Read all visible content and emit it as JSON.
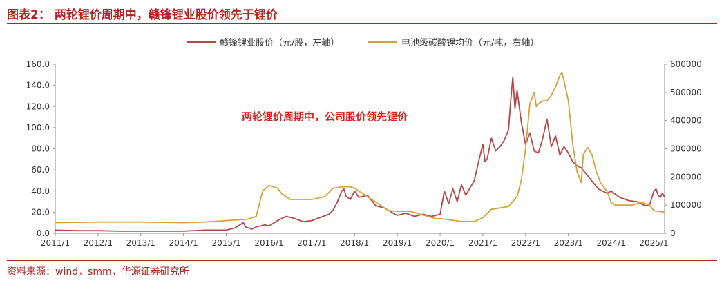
{
  "figure_title": "图表2：    两轮锂价周期中，赣锋锂业股价领先于锂价",
  "source": "资料来源：wind，smm，华源证券研究所",
  "chart_data": {
    "type": "line",
    "annotation": "两轮锂价周期中，公司股价领先锂价",
    "x_tick_labels": [
      "2011/1",
      "2012/1",
      "2013/1",
      "2014/1",
      "2015/1",
      "2016/1",
      "2017/1",
      "2018/1",
      "2019/1",
      "2020/1",
      "2021/1",
      "2022/1",
      "2023/1",
      "2024/1",
      "2025/1"
    ],
    "x_range": [
      2011.0,
      2025.25
    ],
    "y_left": {
      "range": [
        0,
        160
      ],
      "ticks": [
        "0.0",
        "20.0",
        "40.0",
        "60.0",
        "80.0",
        "100.0",
        "120.0",
        "140.0",
        "160.0"
      ]
    },
    "y_right": {
      "range": [
        0,
        600000
      ],
      "ticks": [
        "0",
        "100000",
        "200000",
        "300000",
        "400000",
        "500000",
        "600000"
      ]
    },
    "grid": false,
    "legend_position": "top",
    "colors": {
      "stock": "#b5484a",
      "lithium": "#d4a33a",
      "title": "#b22222",
      "annotation": "#e02020"
    },
    "series": [
      {
        "name": "赣锋锂业股价（元/股，左轴）",
        "axis": "left",
        "color": "#b5484a",
        "x": [
          2011.0,
          2011.5,
          2012.0,
          2012.5,
          2013.0,
          2013.5,
          2014.0,
          2014.5,
          2015.0,
          2015.2,
          2015.4,
          2015.45,
          2015.6,
          2015.7,
          2015.9,
          2016.0,
          2016.2,
          2016.4,
          2016.6,
          2016.8,
          2017.0,
          2017.2,
          2017.4,
          2017.5,
          2017.6,
          2017.7,
          2017.75,
          2017.8,
          2017.9,
          2018.0,
          2018.1,
          2018.3,
          2018.5,
          2018.7,
          2018.9,
          2019.0,
          2019.2,
          2019.4,
          2019.6,
          2019.8,
          2020.0,
          2020.1,
          2020.2,
          2020.3,
          2020.4,
          2020.5,
          2020.6,
          2020.8,
          2020.9,
          2021.0,
          2021.05,
          2021.1,
          2021.2,
          2021.3,
          2021.4,
          2021.5,
          2021.6,
          2021.65,
          2021.7,
          2021.75,
          2021.8,
          2021.85,
          2021.9,
          2022.0,
          2022.1,
          2022.2,
          2022.3,
          2022.4,
          2022.5,
          2022.55,
          2022.6,
          2022.7,
          2022.8,
          2022.9,
          2023.0,
          2023.1,
          2023.2,
          2023.3,
          2023.5,
          2023.7,
          2023.9,
          2024.0,
          2024.2,
          2024.4,
          2024.6,
          2024.8,
          2024.9,
          2025.0,
          2025.05,
          2025.1,
          2025.15,
          2025.2,
          2025.25
        ],
        "values": [
          3,
          2.5,
          2.5,
          2,
          2,
          2,
          2,
          3,
          3,
          5,
          10,
          6,
          4,
          6,
          8,
          7,
          12,
          16,
          14,
          11,
          12,
          15,
          18,
          22,
          30,
          40,
          42,
          35,
          32,
          40,
          34,
          36,
          26,
          24,
          19,
          17,
          19,
          16,
          18,
          16,
          18,
          40,
          28,
          42,
          30,
          46,
          36,
          50,
          68,
          84,
          68,
          70,
          90,
          78,
          82,
          88,
          98,
          125,
          148,
          118,
          135,
          120,
          105,
          84,
          95,
          78,
          76,
          90,
          108,
          95,
          82,
          92,
          74,
          82,
          76,
          68,
          64,
          62,
          52,
          42,
          38,
          40,
          34,
          31,
          30,
          26,
          27,
          40,
          42,
          36,
          34,
          38,
          34
        ]
      },
      {
        "name": "电池级碳酸锂均价（元/吨，右轴）",
        "axis": "right",
        "color": "#d4a33a",
        "x": [
          2011.0,
          2012.0,
          2013.0,
          2014.0,
          2014.5,
          2015.0,
          2015.5,
          2015.7,
          2015.85,
          2016.0,
          2016.2,
          2016.3,
          2016.5,
          2016.8,
          2017.0,
          2017.3,
          2017.5,
          2017.7,
          2017.9,
          2018.0,
          2018.2,
          2018.4,
          2018.6,
          2018.8,
          2019.0,
          2019.3,
          2019.6,
          2019.9,
          2020.0,
          2020.2,
          2020.5,
          2020.8,
          2021.0,
          2021.2,
          2021.4,
          2021.6,
          2021.8,
          2021.9,
          2022.0,
          2022.1,
          2022.2,
          2022.25,
          2022.3,
          2022.4,
          2022.5,
          2022.6,
          2022.7,
          2022.8,
          2022.85,
          2022.9,
          2023.0,
          2023.1,
          2023.2,
          2023.3,
          2023.35,
          2023.45,
          2023.55,
          2023.65,
          2023.75,
          2023.9,
          2024.0,
          2024.1,
          2024.3,
          2024.5,
          2024.7,
          2024.9,
          2025.0,
          2025.25
        ],
        "values": [
          38000,
          40000,
          40000,
          38000,
          40000,
          45000,
          50000,
          60000,
          150000,
          170000,
          160000,
          140000,
          120000,
          120000,
          120000,
          130000,
          160000,
          165000,
          165000,
          160000,
          140000,
          120000,
          100000,
          80000,
          78000,
          78000,
          65000,
          52000,
          52000,
          48000,
          42000,
          42000,
          55000,
          85000,
          90000,
          95000,
          130000,
          190000,
          300000,
          460000,
          500000,
          450000,
          460000,
          470000,
          470000,
          490000,
          520000,
          560000,
          570000,
          540000,
          470000,
          320000,
          220000,
          180000,
          280000,
          305000,
          280000,
          220000,
          180000,
          150000,
          110000,
          100000,
          100000,
          100000,
          110000,
          100000,
          80000,
          75000
        ]
      }
    ]
  }
}
